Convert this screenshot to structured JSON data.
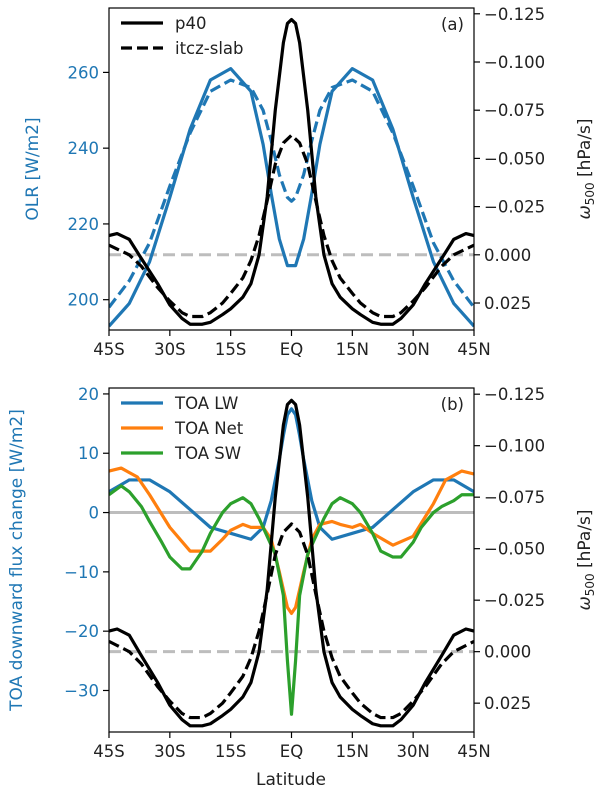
{
  "colors": {
    "lw": "#1f77b4",
    "net": "#ff7f0e",
    "sw": "#2ca02c",
    "omega": "#000000",
    "zero_line": "#bdbdbd",
    "left_axis_label": "#1f77b4"
  },
  "xlabel": "Latitude",
  "chart_data": [
    {
      "type": "line",
      "panel_label": "(a)",
      "xlim": [
        -45,
        45
      ],
      "x_ticks": [
        -45,
        -30,
        -15,
        0,
        15,
        30,
        45
      ],
      "x_tick_labels": [
        "45S",
        "30S",
        "15S",
        "EQ",
        "15N",
        "30N",
        "45N"
      ],
      "ylabel_left": "OLR [W/m2]",
      "ylim_left": [
        192,
        277
      ],
      "y_ticks_left": [
        200,
        220,
        240,
        260
      ],
      "ylabel_right": "ω500 [hPa/s]",
      "ylim_right": [
        0.039,
        -0.128
      ],
      "y_ticks_right": [
        -0.125,
        -0.1,
        -0.075,
        -0.05,
        -0.025,
        0.0,
        0.025
      ],
      "y_tick_labels_right": [
        "−0.125",
        "−0.100",
        "−0.075",
        "−0.050",
        "−0.025",
        "0.000",
        "0.025"
      ],
      "legend": {
        "position": "top-left",
        "entries": [
          {
            "label": "p40",
            "style": "solid"
          },
          {
            "label": "itcz-slab",
            "style": "dashed"
          }
        ]
      },
      "series": [
        {
          "name": "p40",
          "color_key": "lw",
          "style": "solid",
          "axis": "left",
          "x": [
            -45,
            -40,
            -35,
            -30,
            -25,
            -20,
            -15,
            -10,
            -7,
            -5,
            -3,
            -1,
            0,
            1,
            3,
            5,
            7,
            10,
            15,
            20,
            25,
            30,
            35,
            40,
            45
          ],
          "y": [
            193,
            199,
            210,
            227,
            245,
            258,
            261,
            255,
            241,
            228,
            216,
            209,
            209,
            209,
            216,
            228,
            241,
            255,
            261,
            258,
            245,
            227,
            210,
            199,
            193
          ]
        },
        {
          "name": "itcz-slab",
          "color_key": "lw",
          "style": "dashed",
          "axis": "left",
          "x": [
            -45,
            -40,
            -35,
            -30,
            -25,
            -20,
            -15,
            -10,
            -7,
            -5,
            -3,
            -1,
            0,
            1,
            3,
            5,
            7,
            10,
            15,
            20,
            25,
            30,
            35,
            40,
            45
          ],
          "y": [
            198,
            205,
            215,
            230,
            244,
            255,
            258,
            256,
            250,
            242,
            233,
            227,
            226,
            227,
            233,
            242,
            250,
            256,
            258,
            255,
            244,
            230,
            215,
            205,
            198
          ]
        },
        {
          "name": "p40",
          "color_key": "omega",
          "style": "solid",
          "axis": "right",
          "x": [
            -45,
            -43,
            -40,
            -37,
            -33,
            -30,
            -27,
            -25,
            -22,
            -20,
            -17,
            -15,
            -12,
            -10,
            -8,
            -6,
            -4,
            -2,
            -1,
            0,
            1,
            2,
            4,
            6,
            8,
            10,
            12,
            15,
            17,
            20,
            22,
            25,
            27,
            30,
            33,
            37,
            40,
            43,
            45
          ],
          "y": [
            -0.01,
            -0.011,
            -0.008,
            0.002,
            0.015,
            0.026,
            0.033,
            0.036,
            0.036,
            0.035,
            0.031,
            0.028,
            0.022,
            0.015,
            0.0,
            -0.03,
            -0.075,
            -0.11,
            -0.12,
            -0.122,
            -0.12,
            -0.11,
            -0.075,
            -0.03,
            0.0,
            0.015,
            0.022,
            0.028,
            0.031,
            0.035,
            0.036,
            0.036,
            0.033,
            0.026,
            0.015,
            0.002,
            -0.008,
            -0.011,
            -0.01
          ]
        },
        {
          "name": "itcz-slab",
          "color_key": "omega",
          "style": "dashed",
          "axis": "right",
          "x": [
            -45,
            -43,
            -40,
            -37,
            -33,
            -30,
            -27,
            -25,
            -22,
            -20,
            -17,
            -15,
            -12,
            -10,
            -8,
            -6,
            -4,
            -2,
            0,
            2,
            4,
            6,
            8,
            10,
            12,
            15,
            17,
            20,
            22,
            25,
            27,
            30,
            33,
            37,
            40,
            43,
            45
          ],
          "y": [
            -0.005,
            -0.003,
            0.0,
            0.006,
            0.017,
            0.024,
            0.03,
            0.032,
            0.032,
            0.03,
            0.025,
            0.02,
            0.012,
            0.003,
            -0.01,
            -0.028,
            -0.047,
            -0.058,
            -0.062,
            -0.058,
            -0.047,
            -0.028,
            -0.01,
            0.003,
            0.012,
            0.02,
            0.025,
            0.03,
            0.032,
            0.032,
            0.03,
            0.024,
            0.017,
            0.006,
            0.0,
            -0.003,
            -0.005
          ]
        },
        {
          "name": "",
          "color_key": "zero_line",
          "style": "dashed",
          "axis": "right",
          "x": [
            -45,
            45
          ],
          "y": [
            0,
            0
          ]
        }
      ]
    },
    {
      "type": "line",
      "panel_label": "(b)",
      "xlim": [
        -45,
        45
      ],
      "x_ticks": [
        -45,
        -30,
        -15,
        0,
        15,
        30,
        45
      ],
      "x_tick_labels": [
        "45S",
        "30S",
        "15S",
        "EQ",
        "15N",
        "30N",
        "45N"
      ],
      "ylabel_left": "TOA downward flux change [W/m2]",
      "ylim_left": [
        -37,
        21
      ],
      "y_ticks_left": [
        20,
        10,
        0,
        -10,
        -20,
        -30
      ],
      "y_tick_labels_left": [
        "20",
        "10",
        "0",
        "−10",
        "−20",
        "−30"
      ],
      "ylabel_right": "ω500 [hPa/s]",
      "ylim_right": [
        0.039,
        -0.128
      ],
      "y_ticks_right": [
        -0.125,
        -0.1,
        -0.075,
        -0.05,
        -0.025,
        0.0,
        0.025
      ],
      "y_tick_labels_right": [
        "−0.125",
        "−0.100",
        "−0.075",
        "−0.050",
        "−0.025",
        "0.000",
        "0.025"
      ],
      "legend": {
        "position": "top-left",
        "entries": [
          {
            "label": "TOA LW",
            "color_key": "lw"
          },
          {
            "label": "TOA Net",
            "color_key": "net"
          },
          {
            "label": "TOA SW",
            "color_key": "sw"
          }
        ]
      },
      "series": [
        {
          "name": "TOA LW",
          "color_key": "lw",
          "style": "solid",
          "axis": "left",
          "x": [
            -45,
            -40,
            -35,
            -30,
            -25,
            -20,
            -15,
            -10,
            -7,
            -5,
            -3,
            -2,
            -1,
            0,
            1,
            2,
            3,
            5,
            7,
            10,
            15,
            20,
            25,
            30,
            35,
            40,
            45
          ],
          "y": [
            3.5,
            5.5,
            5.5,
            3.5,
            0.5,
            -2.5,
            -3.5,
            -4.5,
            -2.5,
            2.0,
            9.0,
            13.0,
            16.5,
            17.5,
            16.5,
            13.0,
            9.0,
            2.0,
            -2.5,
            -4.5,
            -3.5,
            -2.5,
            0.5,
            3.5,
            5.5,
            5.5,
            3.5
          ]
        },
        {
          "name": "TOA Net",
          "color_key": "net",
          "style": "solid",
          "axis": "left",
          "x": [
            -45,
            -42,
            -38,
            -35,
            -30,
            -25,
            -20,
            -17,
            -15,
            -12,
            -10,
            -7,
            -5,
            -3,
            -1,
            0,
            1,
            3,
            5,
            7,
            10,
            12,
            15,
            17,
            20,
            25,
            30,
            35,
            38,
            42,
            45
          ],
          "y": [
            7.0,
            7.5,
            6.0,
            3.0,
            -2.5,
            -6.5,
            -6.5,
            -4.5,
            -3.0,
            -2.0,
            -2.5,
            -2.5,
            -4.5,
            -10.0,
            -16.0,
            -17.0,
            -16.0,
            -10.0,
            -4.5,
            -2.0,
            -1.5,
            -2.0,
            -2.5,
            -2.0,
            -3.5,
            -5.5,
            -4.0,
            1.5,
            5.5,
            7.0,
            6.5
          ]
        },
        {
          "name": "TOA SW",
          "color_key": "sw",
          "style": "solid",
          "axis": "left",
          "x": [
            -45,
            -42,
            -40,
            -37,
            -35,
            -32,
            -30,
            -27,
            -25,
            -22,
            -20,
            -17,
            -15,
            -12,
            -10,
            -8,
            -6,
            -4,
            -2,
            -1,
            0,
            1,
            2,
            4,
            6,
            8,
            10,
            12,
            15,
            17,
            20,
            22,
            25,
            27,
            30,
            32,
            35,
            37,
            40,
            42,
            45
          ],
          "y": [
            3.0,
            4.5,
            3.5,
            1.0,
            -1.5,
            -5.0,
            -7.5,
            -9.5,
            -9.5,
            -6.5,
            -3.5,
            0.0,
            1.5,
            2.5,
            1.5,
            -1.0,
            -4.0,
            -7.0,
            -14.0,
            -25.0,
            -34.0,
            -25.0,
            -14.0,
            -7.0,
            -4.0,
            -1.0,
            1.5,
            2.5,
            1.5,
            0.0,
            -3.5,
            -6.5,
            -7.5,
            -7.5,
            -5.0,
            -2.5,
            0.0,
            1.0,
            2.0,
            3.0,
            3.0
          ]
        },
        {
          "name": "",
          "color_key": "zero_line",
          "style": "solid",
          "axis": "left",
          "x": [
            -45,
            45
          ],
          "y": [
            0,
            0
          ]
        },
        {
          "name": "",
          "color_key": "omega",
          "style": "solid",
          "axis": "right",
          "x": [
            -45,
            -43,
            -40,
            -37,
            -33,
            -30,
            -27,
            -25,
            -22,
            -20,
            -17,
            -15,
            -12,
            -10,
            -8,
            -6,
            -4,
            -2,
            -1,
            0,
            1,
            2,
            4,
            6,
            8,
            10,
            12,
            15,
            17,
            20,
            22,
            25,
            27,
            30,
            33,
            37,
            40,
            43,
            45
          ],
          "y": [
            -0.01,
            -0.011,
            -0.008,
            0.002,
            0.015,
            0.026,
            0.033,
            0.036,
            0.036,
            0.035,
            0.031,
            0.028,
            0.022,
            0.015,
            0.0,
            -0.03,
            -0.075,
            -0.11,
            -0.12,
            -0.122,
            -0.12,
            -0.11,
            -0.075,
            -0.03,
            0.0,
            0.015,
            0.022,
            0.028,
            0.031,
            0.035,
            0.036,
            0.036,
            0.033,
            0.026,
            0.015,
            0.002,
            -0.008,
            -0.011,
            -0.01
          ]
        },
        {
          "name": "",
          "color_key": "omega",
          "style": "dashed",
          "axis": "right",
          "x": [
            -45,
            -43,
            -40,
            -37,
            -33,
            -30,
            -27,
            -25,
            -22,
            -20,
            -17,
            -15,
            -12,
            -10,
            -8,
            -6,
            -4,
            -2,
            0,
            2,
            4,
            6,
            8,
            10,
            12,
            15,
            17,
            20,
            22,
            25,
            27,
            30,
            33,
            37,
            40,
            43,
            45
          ],
          "y": [
            -0.005,
            -0.003,
            0.0,
            0.006,
            0.017,
            0.024,
            0.03,
            0.032,
            0.032,
            0.03,
            0.025,
            0.02,
            0.012,
            0.003,
            -0.01,
            -0.028,
            -0.047,
            -0.058,
            -0.062,
            -0.058,
            -0.047,
            -0.028,
            -0.01,
            0.003,
            0.012,
            0.02,
            0.025,
            0.03,
            0.032,
            0.032,
            0.03,
            0.024,
            0.017,
            0.006,
            0.0,
            -0.003,
            -0.005
          ]
        },
        {
          "name": "",
          "color_key": "zero_line",
          "style": "dashed",
          "axis": "right",
          "x": [
            -45,
            45
          ],
          "y": [
            0,
            0
          ]
        }
      ]
    }
  ]
}
